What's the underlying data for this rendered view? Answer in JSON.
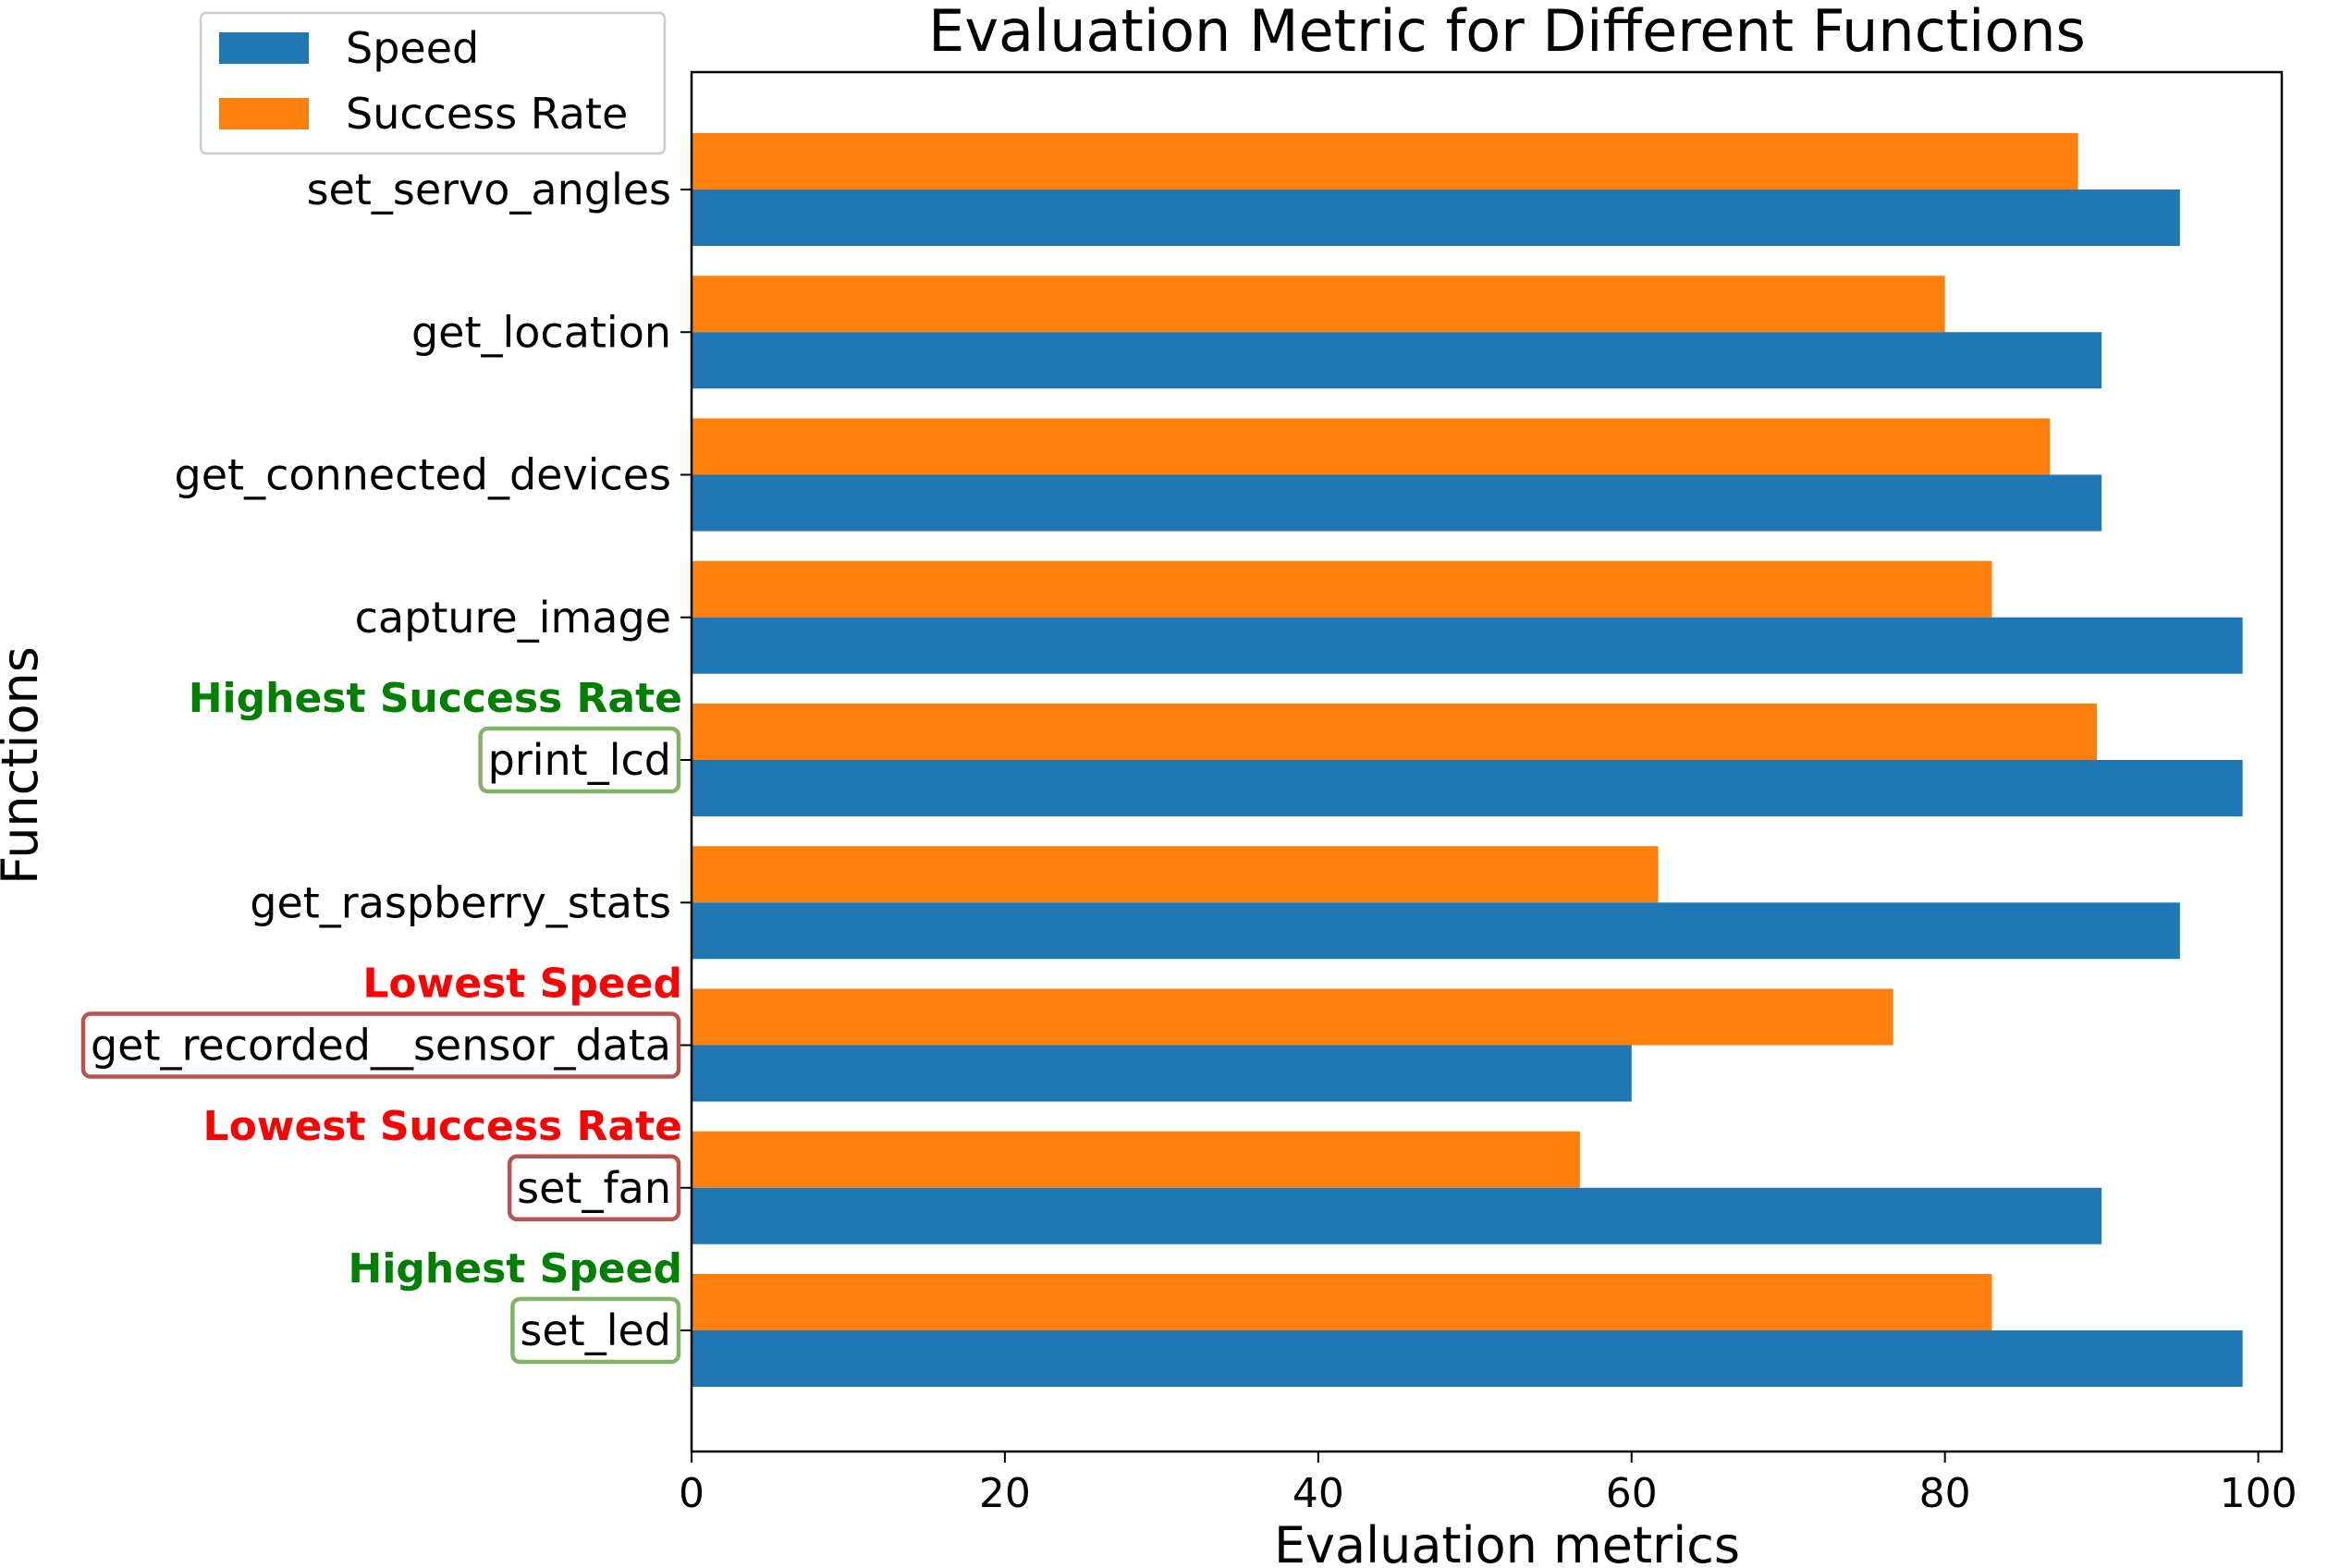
{
  "chart_data": {
    "type": "bar",
    "orientation": "horizontal",
    "title": "Evaluation Metric for Different Functions",
    "xlabel": "Evaluation metrics",
    "ylabel": "Functions",
    "xlim": [
      0,
      101.5
    ],
    "xticks": [
      "0",
      "20",
      "40",
      "60",
      "80",
      "100"
    ],
    "categories": [
      "set_servo_angles",
      "get_location",
      "get_connected_devices",
      "capture_image",
      "print_lcd",
      "get_raspberry_stats",
      "get_recorded__sensor_data",
      "set_fan",
      "set_led"
    ],
    "series": [
      {
        "name": "Speed",
        "color": "#1f77b4",
        "values": [
          95,
          90,
          90,
          99,
          99,
          95,
          60,
          90,
          99
        ]
      },
      {
        "name": "Success Rate",
        "color": "#ff7f0e",
        "values": [
          88.5,
          80,
          86.7,
          83,
          89.7,
          61.7,
          76.7,
          56.7,
          83
        ]
      }
    ],
    "legend_position": "upper-left",
    "grid": false,
    "annotations": [
      {
        "category": "print_lcd",
        "text": "Highest Success Rate",
        "color": "#008000",
        "box_color": "#82b366"
      },
      {
        "category": "get_recorded__sensor_data",
        "text": "Lowest Speed",
        "color": "#ff0000",
        "box_color": "#b85450"
      },
      {
        "category": "set_fan",
        "text": "Lowest Success Rate",
        "color": "#ff0000",
        "box_color": "#b85450"
      },
      {
        "category": "set_led",
        "text": "Highest Speed",
        "color": "#008000",
        "box_color": "#82b366"
      }
    ]
  }
}
